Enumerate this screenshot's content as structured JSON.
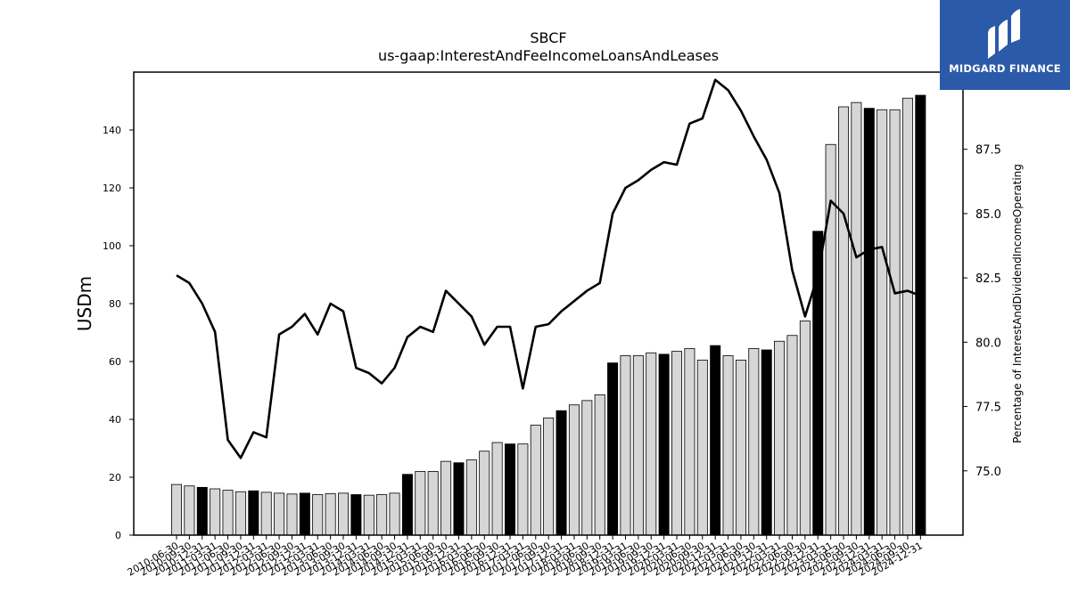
{
  "brand": {
    "name": "MIDGARD FINANCE",
    "color": "#2b5aa8"
  },
  "chart_data": {
    "type": "bar+line",
    "title": "SBCF",
    "subtitle": "us-gaap:InterestAndFeeIncomeLoansAndLeases",
    "ylabel_left": "USDm",
    "ylabel_right": "Percentage of InterestAndDividendIncomeOperating",
    "ylim_left": [
      0,
      160
    ],
    "yticks_left": [
      0,
      20,
      40,
      60,
      80,
      100,
      120,
      140
    ],
    "ylim_right": [
      72.5,
      90.5
    ],
    "yticks_right": [
      "75.0",
      "77.5",
      "80.0",
      "82.5",
      "85.0",
      "87.5",
      "90.0"
    ],
    "grid": false,
    "categories": [
      "2010-06-30",
      "2010-09-30",
      "2010-12-31",
      "2011-03-31",
      "2011-06-30",
      "2011-09-30",
      "2011-12-31",
      "2012-03-31",
      "2012-06-30",
      "2012-09-30",
      "2012-12-31",
      "2013-03-31",
      "2013-06-30",
      "2013-09-30",
      "2013-12-31",
      "2014-03-31",
      "2014-06-30",
      "2014-09-30",
      "2014-12-31",
      "2015-03-31",
      "2015-06-30",
      "2015-09-30",
      "2015-12-31",
      "2016-03-31",
      "2016-06-30",
      "2016-09-30",
      "2016-12-31",
      "2017-03-31",
      "2017-06-30",
      "2017-09-30",
      "2017-12-31",
      "2018-03-31",
      "2018-06-30",
      "2018-09-30",
      "2018-12-31",
      "2019-03-31",
      "2019-06-30",
      "2019-09-30",
      "2019-12-31",
      "2020-03-31",
      "2020-06-30",
      "2020-09-30",
      "2020-12-31",
      "2021-03-31",
      "2021-06-30",
      "2021-09-30",
      "2021-12-31",
      "2022-03-31",
      "2022-06-30",
      "2022-09-30",
      "2022-12-31",
      "2023-03-31",
      "2023-06-30",
      "2023-09-30",
      "2023-12-31",
      "2024-03-31",
      "2024-06-30",
      "2024-09-30",
      "2024-12-31"
    ],
    "bar_values": [
      17.5,
      17.0,
      16.5,
      16.0,
      15.5,
      15.0,
      15.3,
      14.8,
      14.5,
      14.2,
      14.5,
      14.0,
      14.3,
      14.5,
      14.0,
      13.8,
      14.0,
      14.5,
      21.0,
      22.0,
      22.0,
      25.5,
      25.0,
      26.0,
      29.0,
      32.0,
      31.5,
      31.5,
      38.0,
      40.5,
      43.0,
      45.0,
      46.5,
      48.5,
      59.5,
      62.0,
      62.0,
      63.0,
      62.5,
      63.5,
      64.5,
      60.5,
      65.5,
      62.0,
      60.5,
      64.5,
      64.0,
      67.0,
      69.0,
      74.0,
      105.0,
      135.0,
      148.0,
      149.5,
      147.5,
      147.0,
      147.0,
      151.0,
      152.0
    ],
    "highlight_quarter": "12-31",
    "line_series": {
      "values": [
        82.6,
        82.3,
        81.5,
        80.4,
        76.2,
        75.5,
        76.5,
        76.3,
        80.3,
        80.6,
        81.1,
        80.3,
        81.5,
        81.2,
        79.0,
        78.8,
        78.4,
        79.0,
        80.2,
        80.6,
        80.4,
        82.0,
        81.5,
        81.0,
        79.9,
        80.6,
        80.6,
        78.2,
        80.6,
        80.7,
        81.2,
        81.6,
        82.0,
        82.3,
        85.0,
        86.0,
        86.3,
        86.7,
        87.0,
        86.9,
        88.5,
        88.7,
        90.2,
        89.8,
        89.0,
        88.0,
        87.1,
        85.8,
        82.8,
        81.0,
        82.6,
        85.5,
        85.0,
        83.3,
        83.6,
        83.7,
        81.9,
        82.0,
        81.8
      ]
    },
    "colors": {
      "bar_fill": "#d6d6d6",
      "bar_highlight": "#000000",
      "bar_edge": "#000000",
      "line": "#000000"
    }
  }
}
